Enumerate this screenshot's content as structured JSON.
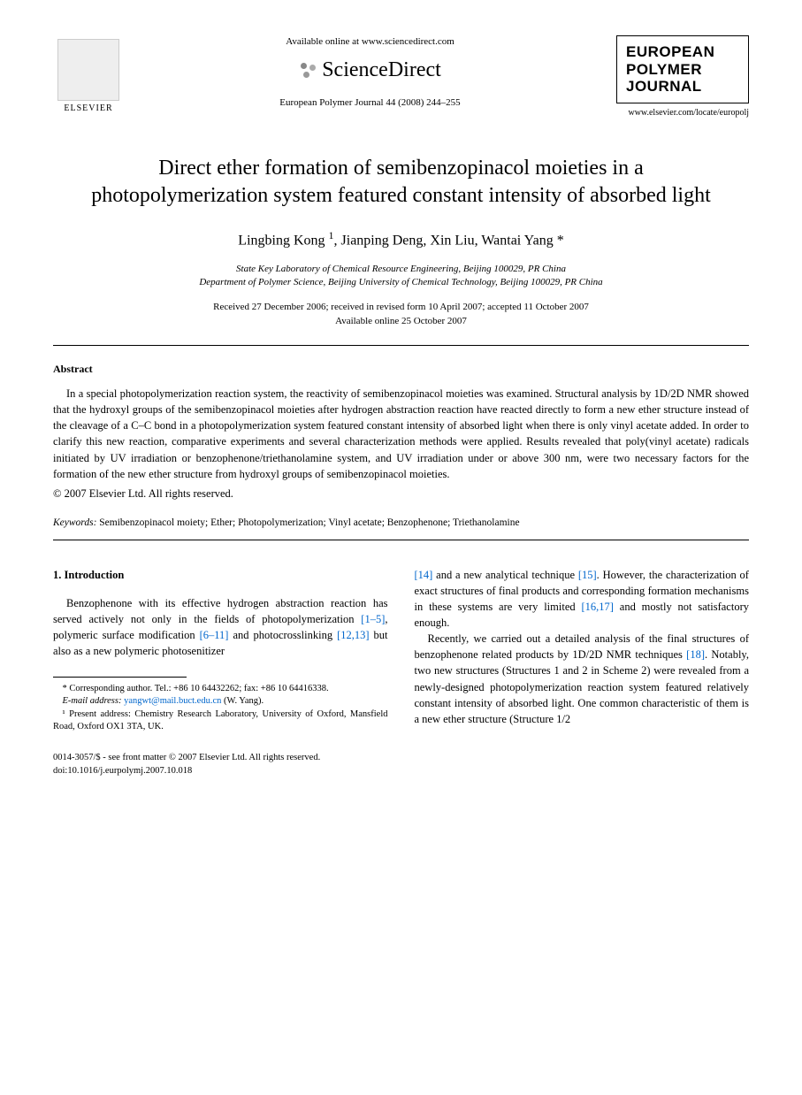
{
  "header": {
    "publisher_name": "ELSEVIER",
    "available_text": "Available online at www.sciencedirect.com",
    "platform_name": "ScienceDirect",
    "journal_ref": "European Polymer Journal 44 (2008) 244–255",
    "journal_logo_line1": "EUROPEAN",
    "journal_logo_line2": "POLYMER",
    "journal_logo_line3": "JOURNAL",
    "journal_url": "www.elsevier.com/locate/europolj"
  },
  "article": {
    "title": "Direct ether formation of semibenzopinacol moieties in a photopolymerization system featured constant intensity of absorbed light",
    "authors_html": "Lingbing Kong <sup>1</sup>, Jianping Deng, Xin Liu, Wantai Yang *",
    "affil1": "State Key Laboratory of Chemical Resource Engineering, Beijing 100029, PR China",
    "affil2": "Department of Polymer Science, Beijing University of Chemical Technology, Beijing 100029, PR China",
    "dates_line1": "Received 27 December 2006; received in revised form 10 April 2007; accepted 11 October 2007",
    "dates_line2": "Available online 25 October 2007"
  },
  "abstract": {
    "heading": "Abstract",
    "text": "In a special photopolymerization reaction system, the reactivity of semibenzopinacol moieties was examined. Structural analysis by 1D/2D NMR showed that the hydroxyl groups of the semibenzopinacol moieties after hydrogen abstraction reaction have reacted directly to form a new ether structure instead of the cleavage of a C–C bond in a photopolymerization system featured constant intensity of absorbed light when there is only vinyl acetate added. In order to clarify this new reaction, comparative experiments and several characterization methods were applied. Results revealed that poly(vinyl acetate) radicals initiated by UV irradiation or benzophenone/triethanolamine system, and UV irradiation under or above 300 nm, were two necessary factors for the formation of the new ether structure from hydroxyl groups of semibenzopinacol moieties.",
    "copyright": "© 2007 Elsevier Ltd. All rights reserved."
  },
  "keywords": {
    "label": "Keywords:",
    "text": " Semibenzopinacol moiety; Ether; Photopolymerization; Vinyl acetate; Benzophenone; Triethanolamine"
  },
  "body": {
    "section_heading": "1. Introduction",
    "col1_p1_pre": "Benzophenone with its effective hydrogen abstraction reaction has served actively not only in the fields of photopolymerization ",
    "ref_1_5": "[1–5]",
    "col1_p1_mid1": ", polymeric surface modification ",
    "ref_6_11": "[6–11]",
    "col1_p1_mid2": " and photocrosslinking ",
    "ref_12_13": "[12,13]",
    "col1_p1_post": " but also as a new polymeric photosenitizer",
    "col2_p1_pre": "",
    "ref_14": "[14]",
    "col2_p1_mid1": " and a new analytical technique ",
    "ref_15": "[15]",
    "col2_p1_mid2": ". However, the characterization of exact structures of final products and corresponding formation mechanisms in these systems are very limited ",
    "ref_16_17": "[16,17]",
    "col2_p1_post": " and mostly not satisfactory enough.",
    "col2_p2_pre": "Recently, we carried out a detailed analysis of the final structures of benzophenone related products by 1D/2D NMR techniques ",
    "ref_18": "[18]",
    "col2_p2_post": ". Notably, two new structures (Structures 1 and 2 in Scheme 2) were revealed from a newly-designed photopolymerization reaction system featured relatively constant intensity of absorbed light. One common characteristic of them is a new ether structure (Structure 1/2"
  },
  "footnotes": {
    "corr_label": "* Corresponding author. Tel.: +86 10 64432262; fax: +86 10 64416338.",
    "email_label": "E-mail address:",
    "email": "yangwt@mail.buct.edu.cn",
    "email_attribution": " (W. Yang).",
    "note1": "¹ Present address: Chemistry Research Laboratory, University of Oxford, Mansfield Road, Oxford OX1 3TA, UK."
  },
  "footer": {
    "issn_line": "0014-3057/$ - see front matter © 2007 Elsevier Ltd. All rights reserved.",
    "doi_line": "doi:10.1016/j.eurpolymj.2007.10.018"
  }
}
